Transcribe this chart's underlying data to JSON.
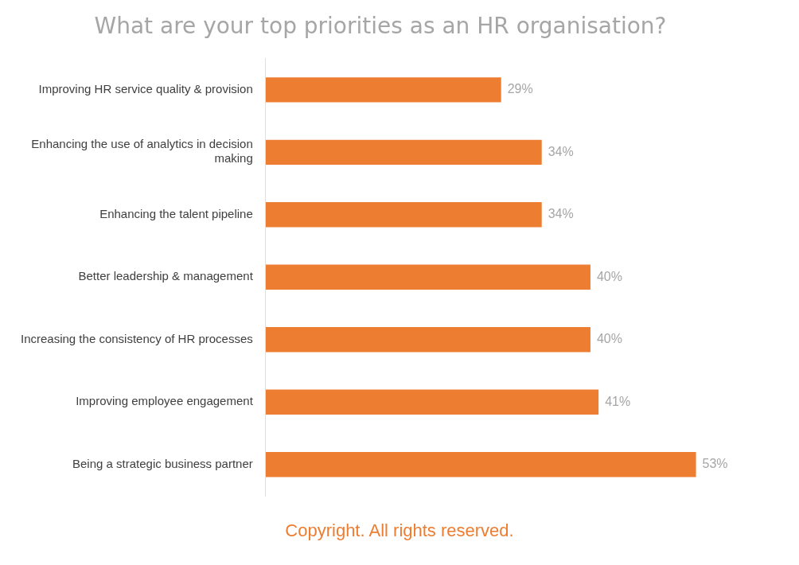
{
  "chart_data": {
    "type": "bar",
    "orientation": "horizontal",
    "title": "What are your top priorities as an HR organisation?",
    "categories": [
      "Improving HR service quality & provision",
      "Enhancing the use of analytics in decision making",
      "Enhancing the talent pipeline",
      "Better leadership & management",
      "Increasing the consistency of HR processes",
      "Improving employee engagement",
      "Being a strategic business partner"
    ],
    "values": [
      29,
      34,
      34,
      40,
      40,
      41,
      53
    ],
    "value_labels": [
      "29%",
      "34%",
      "34%",
      "40%",
      "40%",
      "41%",
      "53%"
    ],
    "color": "#ed7d31",
    "grid": false,
    "tick_labels": "y",
    "legend": false,
    "annotations": [
      "Copyright. All rights reserved."
    ]
  }
}
